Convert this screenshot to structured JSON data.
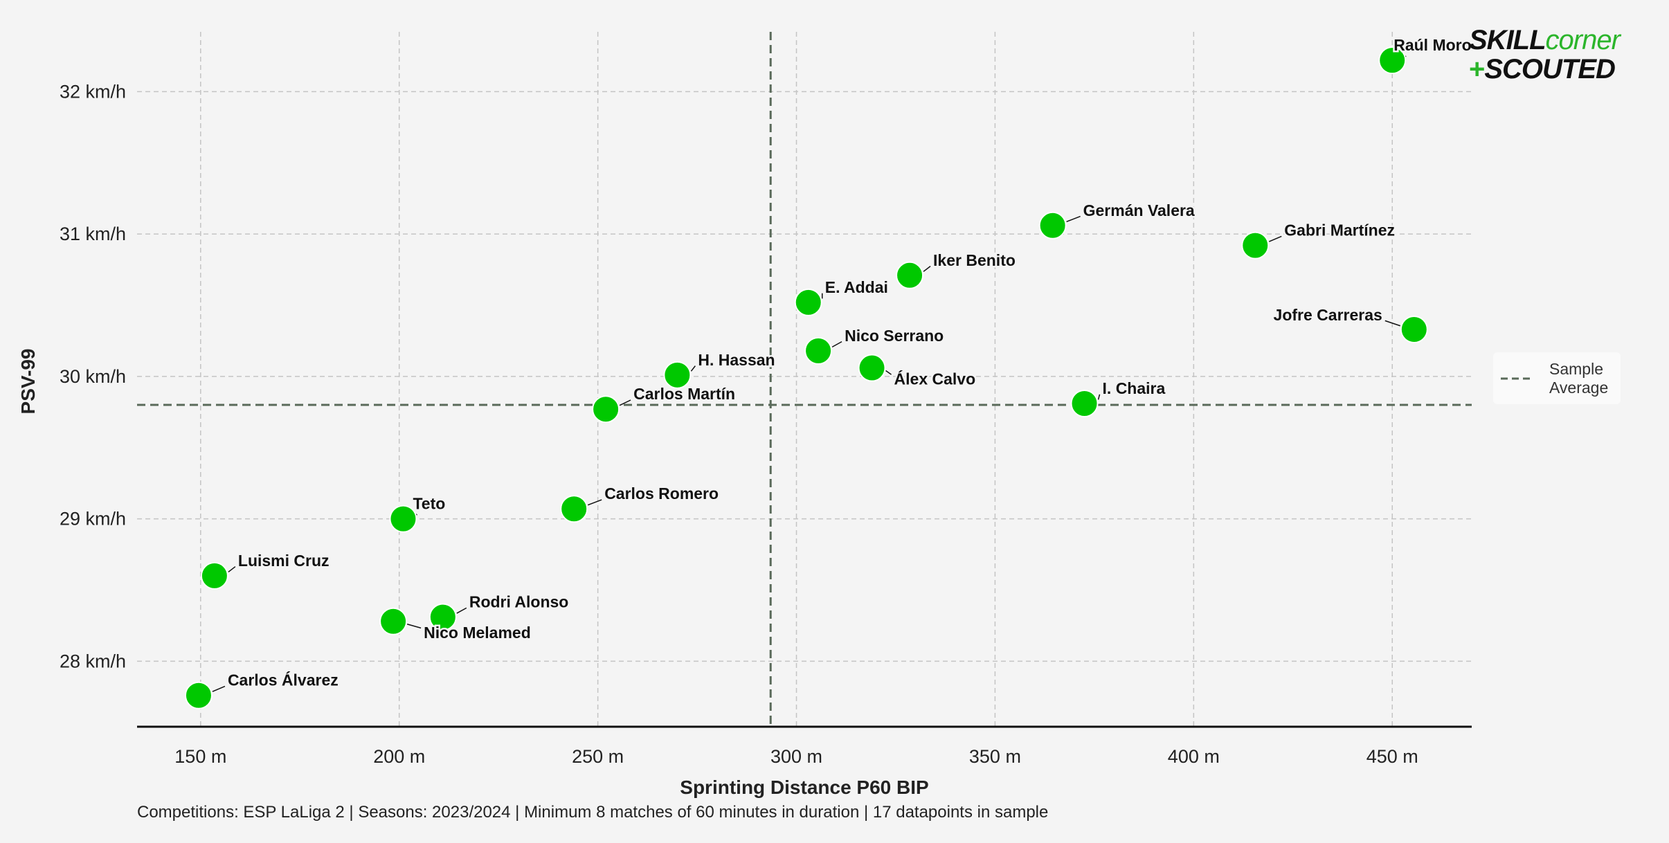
{
  "chart_data": {
    "type": "scatter",
    "xlabel": "Sprinting Distance P60 BIP",
    "ylabel": "PSV-99",
    "xlim": [
      134,
      470
    ],
    "ylim": [
      27.54,
      32.42
    ],
    "x_ticks": [
      150,
      200,
      250,
      300,
      350,
      400,
      450
    ],
    "x_tick_labels": [
      "150 m",
      "200 m",
      "250 m",
      "300 m",
      "350 m",
      "400 m",
      "450 m"
    ],
    "y_ticks": [
      28,
      29,
      30,
      31,
      32
    ],
    "y_tick_labels": [
      "28 km/h",
      "29 km/h",
      "30 km/h",
      "31 km/h",
      "32 km/h"
    ],
    "grid": true,
    "averages": {
      "x": 293.5,
      "y": 29.8
    },
    "legend": {
      "position": "right",
      "entries": [
        "Sample Average"
      ]
    },
    "point_color": "#00c800",
    "points": [
      {
        "name": "Raúl Moro",
        "x": 450,
        "y": 32.22,
        "anchor": "start",
        "dx": 2,
        "dy": -14
      },
      {
        "name": "Germán Valera",
        "x": 364.5,
        "y": 31.06,
        "anchor": "start",
        "dx": 44,
        "dy": -14
      },
      {
        "name": "Gabri Martínez",
        "x": 415.5,
        "y": 30.92,
        "anchor": "start",
        "dx": 42,
        "dy": -14
      },
      {
        "name": "Iker Benito",
        "x": 328.5,
        "y": 30.71,
        "anchor": "start",
        "dx": 34,
        "dy": -14
      },
      {
        "name": "E. Addai",
        "x": 303,
        "y": 30.52,
        "anchor": "start",
        "dx": 24,
        "dy": -14
      },
      {
        "name": "Jofre Carreras",
        "x": 455.5,
        "y": 30.33,
        "anchor": "end",
        "dx": -46,
        "dy": -13
      },
      {
        "name": "Nico Serrano",
        "x": 305.5,
        "y": 30.18,
        "anchor": "start",
        "dx": 38,
        "dy": -14
      },
      {
        "name": "Álex Calvo",
        "x": 319,
        "y": 30.06,
        "anchor": "start",
        "dx": 32,
        "dy": 24
      },
      {
        "name": "H. Hassan",
        "x": 270,
        "y": 30.01,
        "anchor": "start",
        "dx": 30,
        "dy": -14
      },
      {
        "name": "I. Chaira",
        "x": 372.5,
        "y": 29.81,
        "anchor": "start",
        "dx": 26,
        "dy": -14
      },
      {
        "name": "Carlos Martín",
        "x": 252,
        "y": 29.77,
        "anchor": "start",
        "dx": 40,
        "dy": -14
      },
      {
        "name": "Carlos Romero",
        "x": 244,
        "y": 29.07,
        "anchor": "start",
        "dx": 44,
        "dy": -14
      },
      {
        "name": "Teto",
        "x": 201,
        "y": 29.0,
        "anchor": "start",
        "dx": 14,
        "dy": -14
      },
      {
        "name": "Luismi Cruz",
        "x": 153.5,
        "y": 28.6,
        "anchor": "start",
        "dx": 34,
        "dy": -14
      },
      {
        "name": "Rodri Alonso",
        "x": 211,
        "y": 28.31,
        "anchor": "start",
        "dx": 38,
        "dy": -14
      },
      {
        "name": "Nico Melamed",
        "x": 198.5,
        "y": 28.28,
        "anchor": "start",
        "dx": 44,
        "dy": 24
      },
      {
        "name": "Carlos Álvarez",
        "x": 149.5,
        "y": 27.76,
        "anchor": "start",
        "dx": 42,
        "dy": -14
      }
    ]
  },
  "caption": "Competitions: ESP LaLiga 2 | Seasons: 2023/2024 | Minimum 8 matches of 60 minutes in duration | 17 datapoints in sample",
  "logo": {
    "line1_a": "SKILL",
    "line1_b": "corner",
    "line2_plus": "+",
    "line2_text": "SCOUTED"
  }
}
